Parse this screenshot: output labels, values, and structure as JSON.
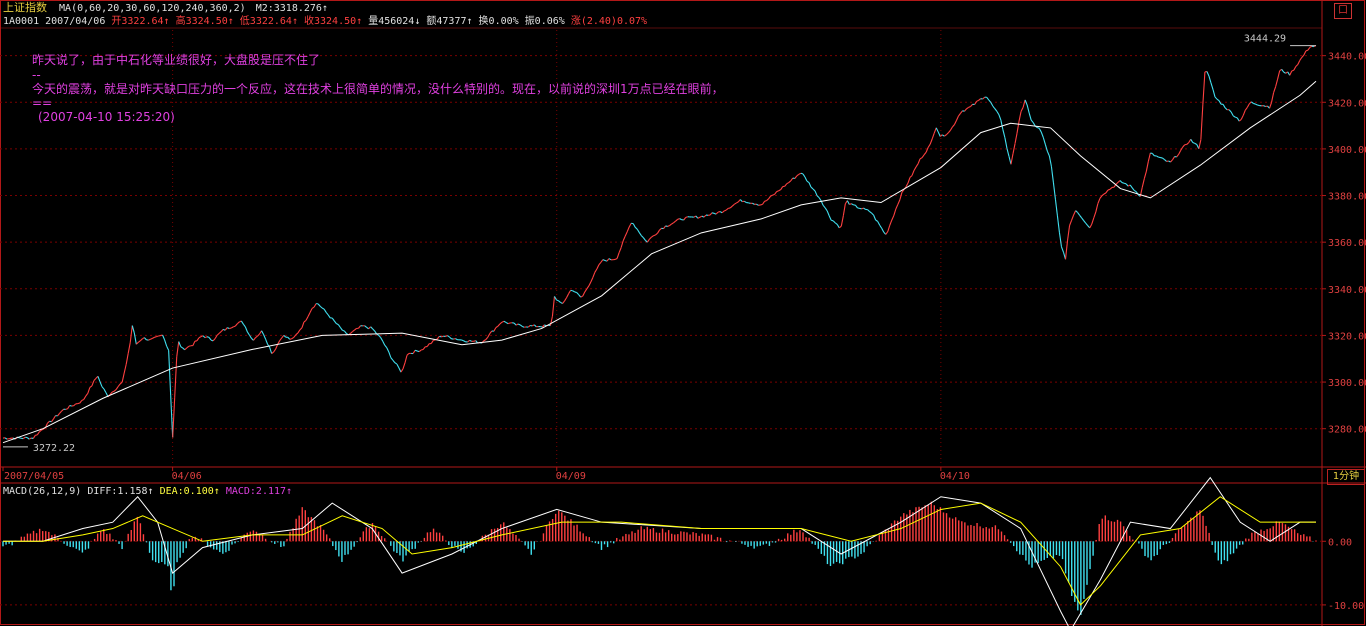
{
  "header": {
    "index_name": "上证指数",
    "ma_label": "MA(0,60,20,30,60,120,240,360,2)",
    "m2_value": "M2:3318.276↑",
    "code_date": "1A0001 2007/04/06",
    "open": "开3322.64↑",
    "high": "高3324.50↑",
    "low": "低3322.64↑",
    "close": "收3324.50↑",
    "volume": "量456024↓",
    "amount": "额47377↑",
    "turnover": "换0.00%",
    "amplitude": "振0.06%",
    "change": "涨(2.40)0.07%"
  },
  "annotation": {
    "line1": "昨天说了，由于中石化等业绩很好，大盘股是压不住了",
    "sep1": "--",
    "line2": "今天的震荡，就是对昨天缺口压力的一个反应，这在技术上很简单的情况，没什么特别的。现在，以前说的深圳1万点已经在眼前，",
    "sep2": "==",
    "time": "(2007-04-10 15:25:20)"
  },
  "restore_button": "口",
  "period_label": "1分钟",
  "macd_header": {
    "name": "MACD(26,12,9)",
    "diff": "DIFF:1.158↑",
    "dea": "DEA:0.100↑",
    "macd": "MACD:2.117↑"
  },
  "colors": {
    "up": "#ff4040",
    "down": "#40e0f0",
    "ma_line": "#ffffff",
    "dea_line": "#ffff00",
    "grid": "#7a0000",
    "axis": "#b21818",
    "annotation": "#e040e0"
  },
  "chart_data": [
    {
      "type": "line",
      "title": "上证指数 1分钟",
      "x_labels": [
        "2007/04/05",
        "04/06",
        "04/09",
        "04/10"
      ],
      "y_ticks": [
        3280.0,
        3300.0,
        3320.0,
        3340.0,
        3360.0,
        3380.0,
        3400.0,
        3420.0,
        3440.0
      ],
      "ylim": [
        3264,
        3451
      ],
      "max_label": "3444.29",
      "min_label": "3272.22",
      "series": [
        {
          "kind": "price",
          "x": [
            0,
            0.03,
            0.06,
            0.08,
            0.095,
            0.098,
            0.105,
            0.12,
            0.128,
            0.13,
            0.133,
            0.14,
            0.148,
            0.16,
            0.166,
            0.17,
            0.175,
            0.18,
            0.19,
            0.2,
            0.21,
            0.22,
            0.24,
            0.25,
            0.26,
            0.27,
            0.28,
            0.29,
            0.3,
            0.31,
            0.315,
            0.33,
            0.345,
            0.36,
            0.37,
            0.38,
            0.39,
            0.4,
            0.405,
            0.42,
            0.44,
            0.46,
            0.48,
            0.5,
            0.52,
            0.54,
            0.55,
            0.552,
            0.56,
            0.57,
            0.58,
            0.6,
            0.615,
            0.63,
            0.645,
            0.66,
            0.68,
            0.7,
            0.72,
            0.74,
            0.76,
            0.78,
            0.8,
            0.82,
            0.83,
            0.84,
            0.845,
            0.85,
            0.87,
            0.885,
            0.9,
            0.91,
            0.92,
            0.93,
            0.935,
            0.94,
            0.95,
            0.96,
            0.97,
            0.985,
            1.0,
            1.01,
            1.02,
            1.025,
            1.03,
            1.04,
            1.05,
            1.06,
            1.065,
            1.068,
            1.075,
            1.09,
            1.1,
            1.12,
            1.13,
            1.14,
            1.15,
            1.17,
            1.19,
            1.2,
            1.205,
            1.215,
            1.225,
            1.24,
            1.25,
            1.27,
            1.28,
            1.29,
            1.3,
            1.31,
            1.316
          ],
          "values": [
            3276,
            3276,
            3288,
            3292,
            3303,
            3299,
            3294,
            3300,
            3318,
            3326,
            3316,
            3319,
            3318,
            3320,
            3314,
            3276,
            3318,
            3314,
            3316,
            3320,
            3318,
            3322,
            3326,
            3318,
            3322,
            3312,
            3320,
            3318,
            3324,
            3332,
            3334,
            3327,
            3320,
            3324,
            3323,
            3318,
            3310,
            3304,
            3312,
            3314,
            3320,
            3318,
            3317,
            3326,
            3324,
            3324,
            3324,
            3337,
            3333,
            3340,
            3336,
            3352,
            3353,
            3369,
            3360,
            3366,
            3370,
            3371,
            3373,
            3378,
            3376,
            3383,
            3390,
            3378,
            3370,
            3366,
            3378,
            3376,
            3373,
            3363,
            3380,
            3388,
            3396,
            3402,
            3410,
            3405,
            3408,
            3416,
            3418,
            3423,
            3413,
            3393,
            3415,
            3422,
            3412,
            3408,
            3395,
            3360,
            3352,
            3366,
            3374,
            3366,
            3380,
            3386,
            3384,
            3380,
            3398,
            3394,
            3404,
            3400,
            3436,
            3422,
            3418,
            3412,
            3420,
            3418,
            3434,
            3432,
            3438,
            3444,
            3444
          ]
        },
        {
          "kind": "ma",
          "x": [
            0,
            0.04,
            0.1,
            0.17,
            0.25,
            0.32,
            0.4,
            0.46,
            0.5,
            0.54,
            0.6,
            0.65,
            0.7,
            0.76,
            0.8,
            0.84,
            0.88,
            0.94,
            0.98,
            1.01,
            1.05,
            1.08,
            1.12,
            1.15,
            1.2,
            1.25,
            1.3,
            1.316
          ],
          "values": [
            3274,
            3280,
            3293,
            3306,
            3314,
            3320,
            3321,
            3316,
            3318,
            3323,
            3337,
            3355,
            3364,
            3370,
            3376,
            3379,
            3377,
            3392,
            3407,
            3411,
            3409,
            3397,
            3383,
            3379,
            3393,
            3409,
            3423,
            3429
          ]
        }
      ]
    },
    {
      "type": "bar",
      "title": "MACD(26,12,9)",
      "y_ticks": [
        0.0,
        -10.0
      ],
      "ylim": [
        -13,
        9
      ],
      "series": [
        {
          "kind": "histogram",
          "x": [
            0.0,
            0.04,
            0.08,
            0.1,
            0.12,
            0.135,
            0.15,
            0.165,
            0.17,
            0.175,
            0.19,
            0.22,
            0.25,
            0.28,
            0.3,
            0.32,
            0.34,
            0.37,
            0.4,
            0.43,
            0.46,
            0.5,
            0.53,
            0.555,
            0.57,
            0.6,
            0.64,
            0.7,
            0.76,
            0.8,
            0.83,
            0.86,
            0.9,
            0.93,
            0.96,
            1.0,
            1.03,
            1.06,
            1.07,
            1.08,
            1.1,
            1.12,
            1.15,
            1.2,
            1.22,
            1.25,
            1.28,
            1.3,
            1.316
          ],
          "values": [
            -1,
            2,
            -2,
            2,
            -1,
            4,
            -3,
            -4,
            -9,
            -3,
            1,
            -2,
            2,
            -1,
            5,
            2,
            -3,
            3,
            -3,
            2,
            -2,
            3,
            -2,
            5,
            3,
            -1,
            2,
            1,
            -1,
            2,
            -4,
            -2,
            4,
            6,
            3,
            2,
            -4,
            -2,
            -8,
            -12,
            4,
            3,
            -3,
            5,
            -4,
            1,
            3,
            1,
            0
          ]
        },
        {
          "kind": "diff",
          "x": [
            0.0,
            0.04,
            0.08,
            0.11,
            0.135,
            0.155,
            0.17,
            0.2,
            0.25,
            0.3,
            0.33,
            0.37,
            0.4,
            0.45,
            0.5,
            0.555,
            0.6,
            0.7,
            0.8,
            0.84,
            0.9,
            0.94,
            0.98,
            1.02,
            1.06,
            1.07,
            1.1,
            1.13,
            1.17,
            1.21,
            1.24,
            1.27,
            1.3,
            1.316
          ],
          "values": [
            0,
            0,
            2,
            3,
            7,
            3,
            -5,
            -1,
            1,
            2,
            6,
            2,
            -5,
            -2,
            2,
            5,
            3,
            2,
            2,
            -2,
            3,
            7,
            6,
            2,
            -11,
            -14,
            -6,
            3,
            2,
            10,
            3,
            0,
            3,
            3
          ]
        },
        {
          "kind": "dea",
          "x": [
            0.0,
            0.04,
            0.08,
            0.11,
            0.14,
            0.17,
            0.2,
            0.25,
            0.3,
            0.34,
            0.38,
            0.41,
            0.45,
            0.5,
            0.56,
            0.62,
            0.7,
            0.8,
            0.85,
            0.9,
            0.94,
            0.98,
            1.02,
            1.06,
            1.08,
            1.1,
            1.14,
            1.18,
            1.22,
            1.26,
            1.3,
            1.316
          ],
          "values": [
            0,
            0,
            1,
            2,
            4,
            2,
            0,
            1,
            1,
            4,
            2,
            -2,
            -1,
            1,
            3,
            3,
            2,
            2,
            0,
            2,
            5,
            6,
            3,
            -4,
            -10,
            -7,
            1,
            2,
            7,
            3,
            3,
            3
          ]
        }
      ]
    }
  ]
}
